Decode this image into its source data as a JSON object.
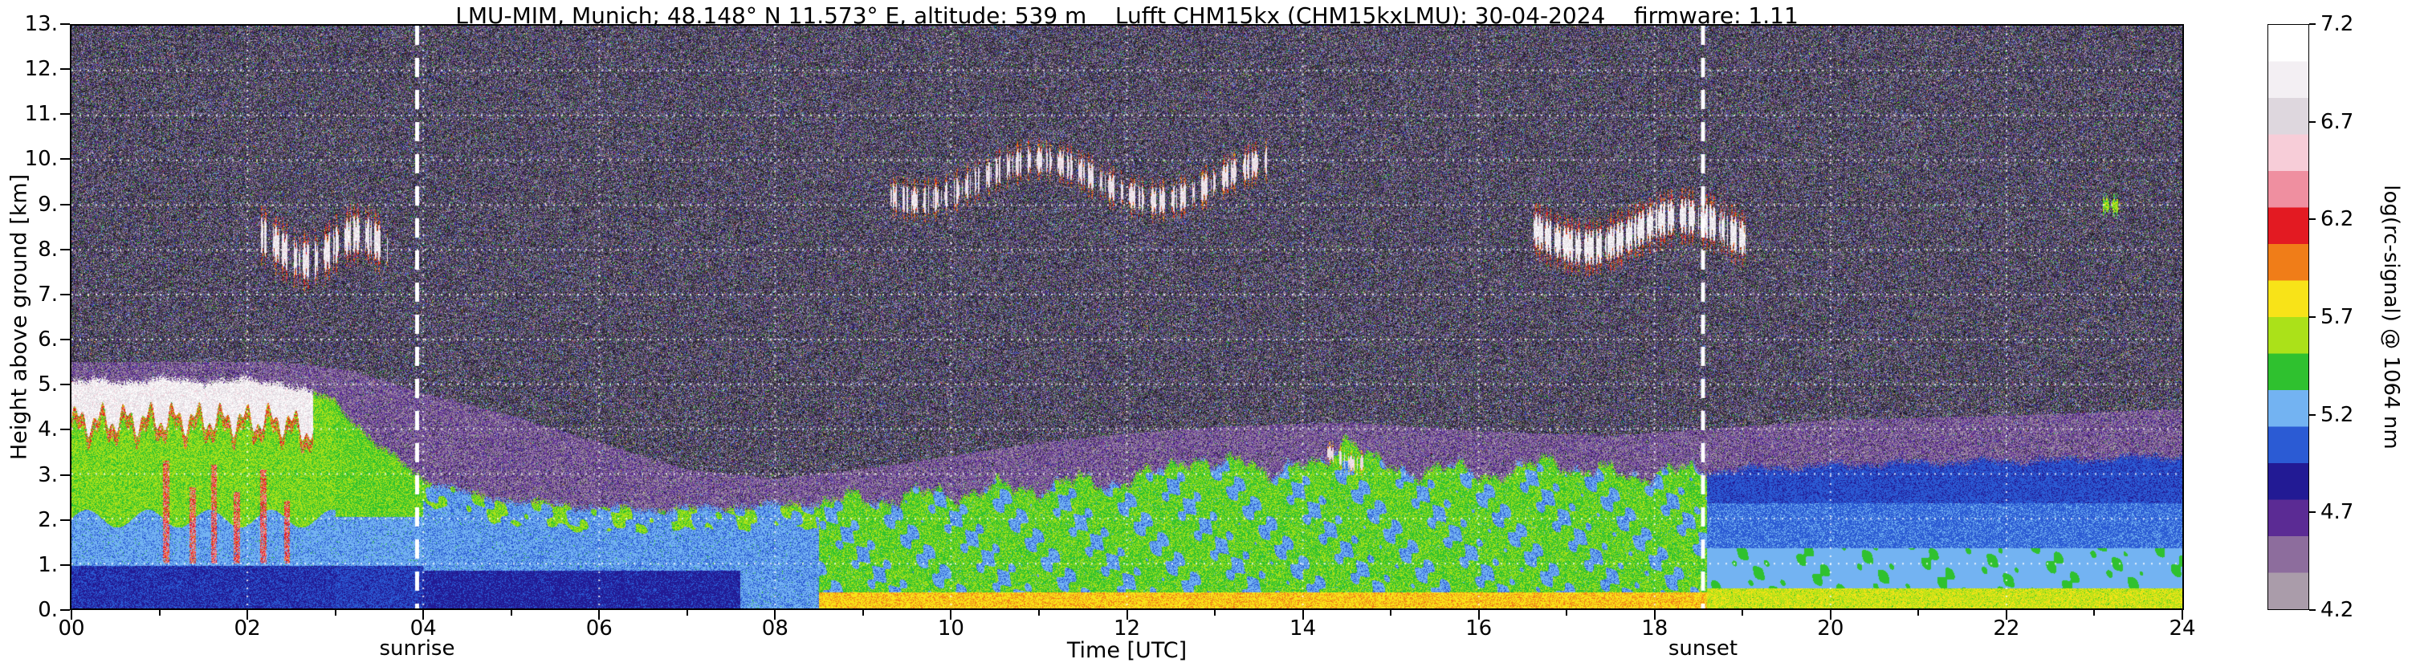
{
  "chart_data": {
    "type": "heatmap",
    "title": "LMU-MIM, Munich; 48.148° N 11.573° E, altitude: 539 m    Lufft CHM15kx (CHM15kxLMU): 30-04-2024    firmware: 1.11",
    "xlabel": "Time [UTC]",
    "ylabel": "Height above ground [km]",
    "xlim": [
      0,
      24
    ],
    "ylim": [
      0,
      13
    ],
    "grid": "white dashed, every 2 h and every 1 km",
    "x_ticks": [
      {
        "t": 0,
        "label": "00"
      },
      {
        "t": 2,
        "label": "02"
      },
      {
        "t": 4,
        "label": "04"
      },
      {
        "t": 6,
        "label": "06"
      },
      {
        "t": 8,
        "label": "08"
      },
      {
        "t": 10,
        "label": "10"
      },
      {
        "t": 12,
        "label": "12"
      },
      {
        "t": 14,
        "label": "14"
      },
      {
        "t": 16,
        "label": "16"
      },
      {
        "t": 18,
        "label": "18"
      },
      {
        "t": 20,
        "label": "20"
      },
      {
        "t": 22,
        "label": "22"
      },
      {
        "t": 24,
        "label": "24"
      }
    ],
    "y_ticks": [
      {
        "h": 0,
        "label": "0."
      },
      {
        "h": 1,
        "label": "1."
      },
      {
        "h": 2,
        "label": "2."
      },
      {
        "h": 3,
        "label": "3."
      },
      {
        "h": 4,
        "label": "4."
      },
      {
        "h": 5,
        "label": "5."
      },
      {
        "h": 6,
        "label": "6."
      },
      {
        "h": 7,
        "label": "7."
      },
      {
        "h": 8,
        "label": "8."
      },
      {
        "h": 9,
        "label": "9."
      },
      {
        "h": 10,
        "label": "10."
      },
      {
        "h": 11,
        "label": "11."
      },
      {
        "h": 12,
        "label": "12."
      },
      {
        "h": 13,
        "label": "13."
      }
    ],
    "colorbar": {
      "label": "log(rc-signal) @ 1064 nm",
      "min": 4.2,
      "max": 7.2,
      "tick_labels": [
        "7.2",
        "6.7",
        "6.2",
        "5.7",
        "5.2",
        "4.7",
        "4.2"
      ],
      "colors_top_to_bottom": [
        "#ffffff",
        "#f3eff3",
        "#ded7de",
        "#f7cdd8",
        "#ef8fa0",
        "#e31a22",
        "#f07d18",
        "#f8e318",
        "#abe119",
        "#2fc12f",
        "#73b3f2",
        "#2b5bd4",
        "#221a94",
        "#5b2b94",
        "#8d6d9d",
        "#aa9caa"
      ]
    },
    "annotations": [
      {
        "label": "sunrise",
        "time_utc": 3.93,
        "style": "white dashed vertical line"
      },
      {
        "label": "sunset",
        "time_utc": 18.55,
        "style": "white dashed vertical line"
      }
    ],
    "aerosol_top_km": [
      [
        0,
        5.05
      ],
      [
        1.2,
        5.1
      ],
      [
        2.4,
        5.05
      ],
      [
        3.0,
        4.6
      ],
      [
        3.5,
        3.6
      ],
      [
        4.0,
        2.9
      ],
      [
        4.6,
        2.5
      ],
      [
        5.5,
        2.3
      ],
      [
        6.5,
        2.2
      ],
      [
        7.5,
        2.25
      ],
      [
        8.5,
        2.35
      ],
      [
        9.5,
        2.5
      ],
      [
        10.5,
        2.65
      ],
      [
        11.5,
        2.8
      ],
      [
        12.5,
        2.95
      ],
      [
        13.5,
        3.05
      ],
      [
        14.5,
        3.15
      ],
      [
        15.5,
        3.1
      ],
      [
        16.5,
        3.0
      ],
      [
        17.5,
        3.0
      ],
      [
        18.5,
        3.05
      ],
      [
        19.5,
        3.15
      ],
      [
        21,
        3.25
      ],
      [
        22.5,
        3.3
      ],
      [
        24,
        3.4
      ]
    ],
    "purple_top_km": [
      [
        0,
        5.5
      ],
      [
        2.4,
        5.5
      ],
      [
        3.2,
        5.3
      ],
      [
        4.0,
        4.8
      ],
      [
        5.0,
        4.3
      ],
      [
        6.0,
        3.7
      ],
      [
        7.0,
        3.1
      ],
      [
        8.0,
        2.9
      ],
      [
        9.0,
        3.1
      ],
      [
        10,
        3.4
      ],
      [
        11,
        3.7
      ],
      [
        12,
        3.9
      ],
      [
        13,
        4.05
      ],
      [
        14.5,
        4.15
      ],
      [
        16,
        3.95
      ],
      [
        17.5,
        3.85
      ],
      [
        18.6,
        4.0
      ],
      [
        20,
        4.2
      ],
      [
        22,
        4.3
      ],
      [
        24,
        4.45
      ]
    ],
    "clouds": [
      {
        "t0": 2.15,
        "t1": 3.6,
        "hc": 8.05,
        "wobble": 0.3,
        "wfreq": 5.3,
        "spread": 0.42,
        "density": 0.52,
        "value": 6.85,
        "edge": 6.05,
        "seed": 3.1
      },
      {
        "t0": 9.3,
        "t1": 13.6,
        "hc": 9.55,
        "wobble": 0.45,
        "wfreq": 2.3,
        "spread": 0.3,
        "density": 0.48,
        "value": 6.8,
        "edge": 6.0,
        "seed": 7.7
      },
      {
        "t0": 16.6,
        "t1": 19.05,
        "hc": 8.4,
        "wobble": 0.35,
        "wfreq": 2.9,
        "spread": 0.4,
        "density": 0.62,
        "value": 6.9,
        "edge": 6.05,
        "seed": 11.3
      },
      {
        "t0": 14.28,
        "t1": 14.75,
        "hc": 3.35,
        "wobble": 0.12,
        "wfreq": 9.0,
        "spread": 0.17,
        "density": 0.5,
        "value": 6.75,
        "edge": 5.9,
        "seed": 5.2
      },
      {
        "t0": 23.08,
        "t1": 23.3,
        "hc": 8.95,
        "wobble": 0.05,
        "wfreq": 4.0,
        "spread": 0.16,
        "density": 0.55,
        "value": 5.6,
        "edge": 5.4,
        "seed": 9.9
      }
    ],
    "render_params": {
      "virga_streaks": [
        [
          1.08,
          3.3
        ],
        [
          1.38,
          2.7
        ],
        [
          1.62,
          3.2
        ],
        [
          1.88,
          2.6
        ],
        [
          2.18,
          3.1
        ],
        [
          2.45,
          2.4
        ]
      ],
      "plume_bumps": [
        [
          12.7,
          0.25,
          0.45
        ],
        [
          13.35,
          0.2,
          0.3
        ],
        [
          14.5,
          0.22,
          0.7
        ],
        [
          16.85,
          0.25,
          0.35
        ]
      ],
      "white_band_end_utc": 2.75,
      "noise_seed": 987654321
    }
  }
}
